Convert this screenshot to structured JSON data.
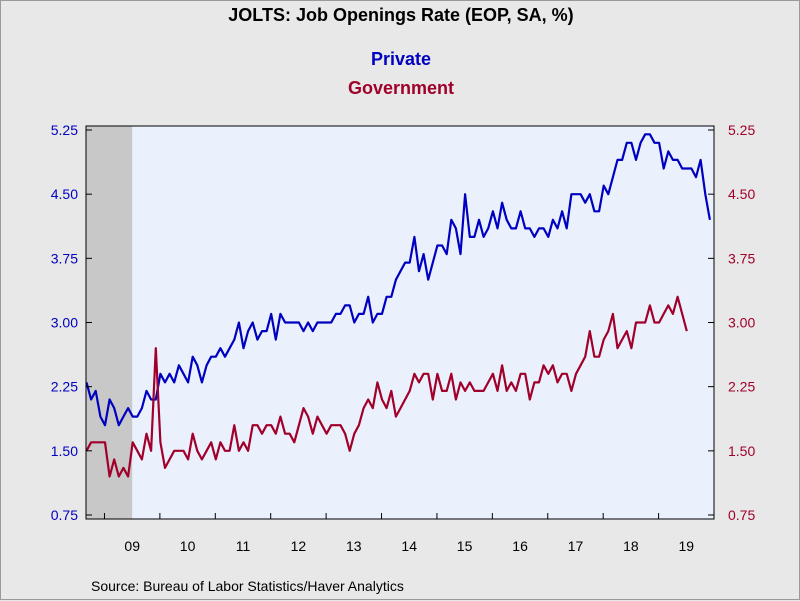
{
  "chart_data": {
    "type": "line",
    "title": "JOLTS: Job Openings Rate (EOP, SA, %)",
    "source": "Source:  Bureau of Labor Statistics/Haver Analytics",
    "colors": {
      "private": "#0000c0",
      "government": "#a0002a",
      "plot_bg": "#eaf1fd",
      "recession": "#c8c8c8"
    },
    "y_left": {
      "ylim": [
        0.75,
        5.25
      ],
      "ticks": [
        "0.75",
        "1.50",
        "2.25",
        "3.00",
        "3.75",
        "4.50",
        "5.25"
      ]
    },
    "y_right": {
      "ylim": [
        0.75,
        5.25
      ],
      "ticks": [
        "0.75",
        "1.50",
        "2.25",
        "3.00",
        "3.75",
        "4.50",
        "5.25"
      ]
    },
    "x": {
      "start": "2008-09",
      "end": "2019-12",
      "tick_labels": [
        "09",
        "10",
        "11",
        "12",
        "13",
        "14",
        "15",
        "16",
        "17",
        "18",
        "19"
      ]
    },
    "recession_shading": {
      "start": "2008-09",
      "end": "2009-06"
    },
    "series": [
      {
        "name": "Private",
        "axis": "left",
        "start": "2008-09",
        "values": [
          2.3,
          2.1,
          2.2,
          1.9,
          1.8,
          2.1,
          2.0,
          1.8,
          1.9,
          2.0,
          1.9,
          1.9,
          2.0,
          2.2,
          2.1,
          2.1,
          2.4,
          2.3,
          2.4,
          2.3,
          2.5,
          2.4,
          2.3,
          2.6,
          2.5,
          2.3,
          2.5,
          2.6,
          2.6,
          2.7,
          2.6,
          2.7,
          2.8,
          3.0,
          2.7,
          2.9,
          3.0,
          2.8,
          2.9,
          2.9,
          3.1,
          2.8,
          3.1,
          3.0,
          3.0,
          3.0,
          3.0,
          2.9,
          3.0,
          2.9,
          3.0,
          3.0,
          3.0,
          3.0,
          3.1,
          3.1,
          3.2,
          3.2,
          3.0,
          3.1,
          3.1,
          3.3,
          3.0,
          3.1,
          3.1,
          3.3,
          3.3,
          3.5,
          3.6,
          3.7,
          3.7,
          4.0,
          3.6,
          3.8,
          3.5,
          3.7,
          3.9,
          3.9,
          3.8,
          4.2,
          4.1,
          3.8,
          4.5,
          4.0,
          4.0,
          4.2,
          4.0,
          4.1,
          4.3,
          4.1,
          4.4,
          4.2,
          4.1,
          4.1,
          4.3,
          4.1,
          4.1,
          4.0,
          4.1,
          4.1,
          4.0,
          4.2,
          4.1,
          4.3,
          4.1,
          4.5,
          4.5,
          4.5,
          4.4,
          4.5,
          4.3,
          4.3,
          4.6,
          4.5,
          4.7,
          4.9,
          4.9,
          5.1,
          5.1,
          4.9,
          5.1,
          5.2,
          5.2,
          5.1,
          5.1,
          4.8,
          5.0,
          4.9,
          4.9,
          4.8,
          4.8,
          4.8,
          4.7,
          4.9,
          4.5,
          4.2
        ]
      },
      {
        "name": "Government",
        "axis": "right",
        "start": "2008-09",
        "values": [
          1.5,
          1.6,
          1.6,
          1.6,
          1.6,
          1.2,
          1.4,
          1.2,
          1.3,
          1.2,
          1.6,
          1.5,
          1.4,
          1.7,
          1.5,
          2.7,
          1.6,
          1.3,
          1.4,
          1.5,
          1.5,
          1.5,
          1.4,
          1.7,
          1.5,
          1.4,
          1.5,
          1.6,
          1.4,
          1.6,
          1.5,
          1.5,
          1.8,
          1.5,
          1.6,
          1.5,
          1.8,
          1.8,
          1.7,
          1.8,
          1.8,
          1.7,
          1.9,
          1.7,
          1.7,
          1.6,
          1.8,
          2.0,
          1.9,
          1.7,
          1.9,
          1.8,
          1.7,
          1.8,
          1.8,
          1.8,
          1.7,
          1.5,
          1.7,
          1.8,
          2.0,
          2.1,
          2.0,
          2.3,
          2.1,
          2.0,
          2.2,
          1.9,
          2.0,
          2.1,
          2.2,
          2.4,
          2.3,
          2.4,
          2.4,
          2.1,
          2.4,
          2.2,
          2.2,
          2.4,
          2.1,
          2.3,
          2.2,
          2.3,
          2.2,
          2.2,
          2.2,
          2.3,
          2.4,
          2.2,
          2.5,
          2.2,
          2.3,
          2.2,
          2.4,
          2.4,
          2.1,
          2.3,
          2.3,
          2.5,
          2.4,
          2.5,
          2.3,
          2.4,
          2.4,
          2.2,
          2.4,
          2.5,
          2.6,
          2.9,
          2.6,
          2.6,
          2.8,
          2.9,
          3.1,
          2.7,
          2.8,
          2.9,
          2.7,
          3.0,
          3.0,
          3.0,
          3.2,
          3.0,
          3.0,
          3.1,
          3.2,
          3.1,
          3.3,
          3.1,
          2.9
        ]
      }
    ]
  }
}
